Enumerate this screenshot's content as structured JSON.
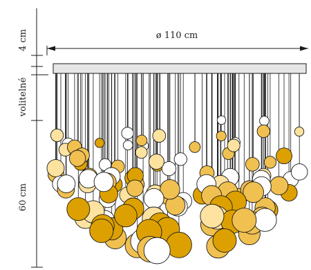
{
  "dimensions": {
    "top_height": "4 cm",
    "diameter": "ø 110 cm",
    "adjustable": "volitelné",
    "drop_height": "60 cm"
  },
  "colors": {
    "line": "#1a1a1a",
    "canopy_fill": "#e6e6e6",
    "amber": "#dca000",
    "gold": "#f0c050",
    "pale": "#fde2a0",
    "clear": "#ffffff"
  },
  "pendant_ball_count": 120
}
